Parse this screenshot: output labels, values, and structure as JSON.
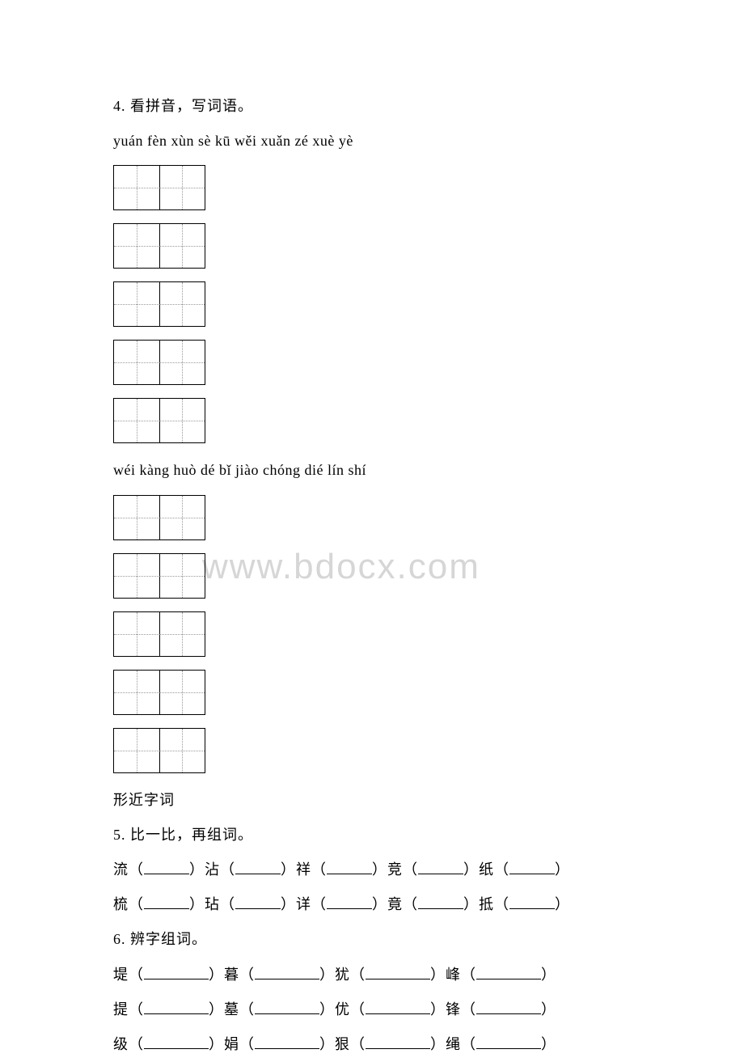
{
  "watermark": "www.bdocx.com",
  "q4": {
    "title": "4. 看拼音，写词语。",
    "pinyin1": "yuán fèn   xùn sè   kū wěi   xuǎn zé   xuè yè",
    "pinyin2": "wéi kàng  huò dé   bǐ jiào  chóng dié  lín shí"
  },
  "section_title": "形近字词",
  "q5": {
    "title": "5. 比一比，再组词。",
    "row1": [
      {
        "char": "流"
      },
      {
        "char": "沾"
      },
      {
        "char": "祥"
      },
      {
        "char": "竞"
      },
      {
        "char": "纸"
      }
    ],
    "row2": [
      {
        "char": "梳"
      },
      {
        "char": "玷"
      },
      {
        "char": "详"
      },
      {
        "char": "竟"
      },
      {
        "char": "抵"
      }
    ]
  },
  "q6": {
    "title": "6. 辨字组词。",
    "row1": [
      {
        "char": "堤"
      },
      {
        "char": "暮"
      },
      {
        "char": "犹"
      },
      {
        "char": "峰"
      }
    ],
    "row2": [
      {
        "char": "提"
      },
      {
        "char": "墓"
      },
      {
        "char": "优"
      },
      {
        "char": "锋"
      }
    ],
    "row3": [
      {
        "char": "级"
      },
      {
        "char": "娟"
      },
      {
        "char": "狠"
      },
      {
        "char": "绳"
      }
    ]
  },
  "colors": {
    "text": "#000000",
    "background": "#ffffff",
    "grid_dotted": "#999999",
    "watermark": "#d6d6d6"
  },
  "typography": {
    "body_fontsize": 18,
    "watermark_fontsize": 44,
    "font_family": "SimSun"
  },
  "char_box": {
    "width": 114,
    "height": 56,
    "border_width": 1.5
  }
}
